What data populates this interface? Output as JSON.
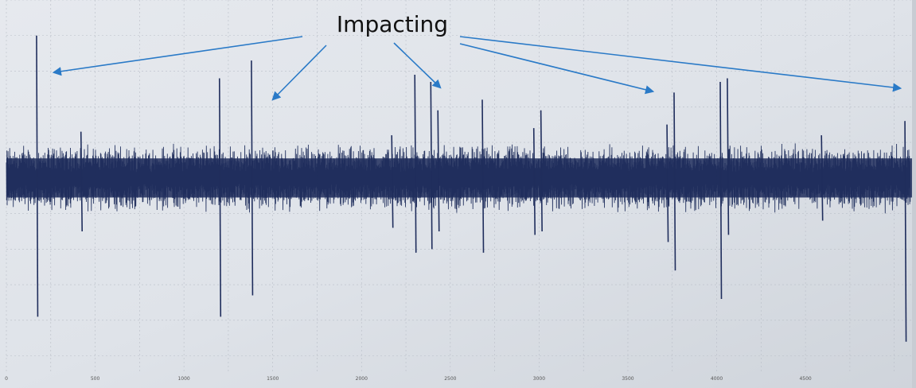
{
  "chart_data": {
    "type": "line",
    "title": "",
    "xlabel": "",
    "ylabel": "",
    "xlim": [
      0,
      5100
    ],
    "ylim": [
      -5.5,
      5
    ],
    "grid": true,
    "x_ticks": [
      "0",
      "500",
      "1000",
      "1500",
      "2000",
      "2500",
      "3000",
      "3500",
      "4000",
      "4500"
    ],
    "x_tick_values": [
      0,
      500,
      1000,
      1500,
      2000,
      2500,
      3000,
      3500,
      4000,
      4500
    ],
    "series": [
      {
        "color": "#1f2d5c",
        "description_noise": "dense vibration signal, amplitude about ±1",
        "noise_amplitude": 1.0,
        "spikes": [
          {
            "x": 170,
            "high": 4.0,
            "low": -3.9
          },
          {
            "x": 420,
            "high": 1.3,
            "low": -1.5
          },
          {
            "x": 1200,
            "high": 2.8,
            "low": -3.9
          },
          {
            "x": 1380,
            "high": 3.3,
            "low": -3.3
          },
          {
            "x": 2170,
            "high": 1.2,
            "low": -1.4
          },
          {
            "x": 2300,
            "high": 2.9,
            "low": -2.1
          },
          {
            "x": 2390,
            "high": 2.7,
            "low": -2.0
          },
          {
            "x": 2430,
            "high": 1.9,
            "low": -1.5
          },
          {
            "x": 2680,
            "high": 2.2,
            "low": -2.1
          },
          {
            "x": 2970,
            "high": 1.4,
            "low": -1.6
          },
          {
            "x": 3010,
            "high": 1.9,
            "low": -1.5
          },
          {
            "x": 3720,
            "high": 1.5,
            "low": -1.8
          },
          {
            "x": 3760,
            "high": 2.4,
            "low": -2.6
          },
          {
            "x": 4020,
            "high": 2.7,
            "low": -3.4
          },
          {
            "x": 4060,
            "high": 2.8,
            "low": -1.6
          },
          {
            "x": 4590,
            "high": 1.2,
            "low": -1.2
          },
          {
            "x": 5060,
            "high": 1.6,
            "low": -4.6
          }
        ]
      }
    ],
    "annotation": {
      "text": "Impacting",
      "arrow_color": "#2a7ac7"
    }
  }
}
